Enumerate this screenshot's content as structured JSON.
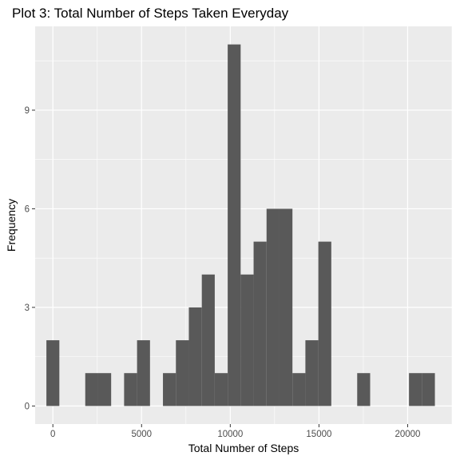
{
  "chart_data": {
    "type": "bar",
    "title": "Plot 3: Total Number of Steps Taken Everyday",
    "xlabel": "Total Number of Steps",
    "ylabel": "Frequency",
    "xlim": [
      -1000,
      22500
    ],
    "ylim": [
      -0.55,
      11.55
    ],
    "x_ticks": [
      0,
      5000,
      10000,
      15000,
      20000
    ],
    "x_tick_labels": [
      "0",
      "5000",
      "10000",
      "15000",
      "20000"
    ],
    "y_ticks": [
      0,
      3,
      6,
      9
    ],
    "y_tick_labels": [
      "0",
      "3",
      "6",
      "9"
    ],
    "bin_width": 730,
    "bin_starts": [
      -365,
      365,
      1095,
      1825,
      2555,
      3285,
      4015,
      4745,
      5475,
      6205,
      6935,
      7665,
      8395,
      9125,
      9855,
      10585,
      11315,
      12045,
      12775,
      13505,
      14235,
      14965,
      15695,
      16425,
      17155,
      17885,
      18615,
      19345,
      20075,
      20805
    ],
    "values": [
      2,
      0,
      0,
      1,
      1,
      0,
      1,
      2,
      0,
      1,
      2,
      3,
      4,
      1,
      11,
      4,
      5,
      6,
      6,
      1,
      2,
      5,
      0,
      0,
      1,
      0,
      0,
      0,
      1,
      1
    ],
    "grid": true,
    "colors": {
      "bar": "#595959",
      "panel": "#ebebeb",
      "grid_major": "#ffffff"
    }
  }
}
